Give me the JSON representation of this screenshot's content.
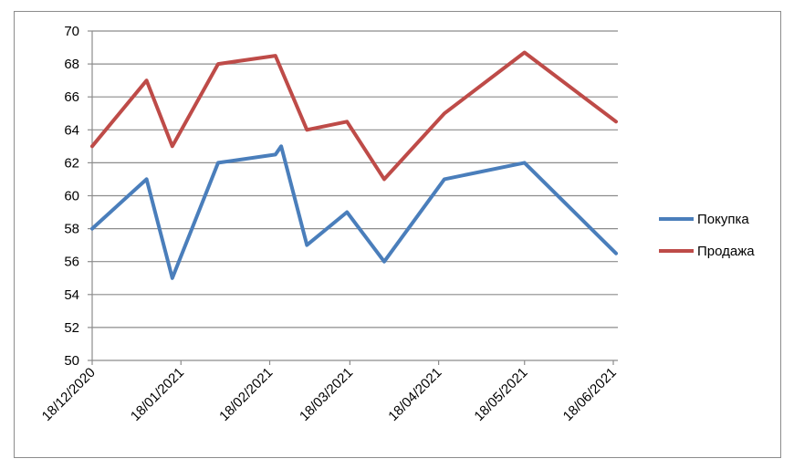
{
  "chart_data": {
    "type": "line",
    "title": "",
    "xlabel": "",
    "ylabel": "",
    "ylim": [
      50,
      70
    ],
    "y_ticks": [
      50,
      52,
      54,
      56,
      58,
      60,
      62,
      64,
      66,
      68,
      70
    ],
    "x_range": [
      "2020-12-18",
      "2021-06-18"
    ],
    "x_ticks": [
      {
        "date": "2020-12-18",
        "label": "18/12/2020"
      },
      {
        "date": "2021-01-18",
        "label": "18/01/2021"
      },
      {
        "date": "2021-02-18",
        "label": "18/02/2021"
      },
      {
        "date": "2021-03-18",
        "label": "18/03/2021"
      },
      {
        "date": "2021-04-18",
        "label": "18/04/2021"
      },
      {
        "date": "2021-05-18",
        "label": "18/05/2021"
      },
      {
        "date": "2021-06-18",
        "label": "18/06/2021"
      }
    ],
    "grid": "horizontal",
    "legend_position": "right",
    "series": [
      {
        "name": "Покупка",
        "color": "#4a7ebb",
        "points": [
          {
            "date": "2020-12-18",
            "value": 58
          },
          {
            "date": "2021-01-06",
            "value": 61
          },
          {
            "date": "2021-01-15",
            "value": 55
          },
          {
            "date": "2021-01-31",
            "value": 62
          },
          {
            "date": "2021-02-20",
            "value": 62.5
          },
          {
            "date": "2021-02-22",
            "value": 63
          },
          {
            "date": "2021-03-03",
            "value": 57
          },
          {
            "date": "2021-03-17",
            "value": 59
          },
          {
            "date": "2021-03-30",
            "value": 56
          },
          {
            "date": "2021-04-20",
            "value": 61
          },
          {
            "date": "2021-05-18",
            "value": 62
          },
          {
            "date": "2021-06-20",
            "value": 56.5
          }
        ]
      },
      {
        "name": "Продажа",
        "color": "#be4b48",
        "points": [
          {
            "date": "2020-12-18",
            "value": 63
          },
          {
            "date": "2021-01-06",
            "value": 67
          },
          {
            "date": "2021-01-15",
            "value": 63
          },
          {
            "date": "2021-01-31",
            "value": 68
          },
          {
            "date": "2021-02-20",
            "value": 68.5
          },
          {
            "date": "2021-03-03",
            "value": 64
          },
          {
            "date": "2021-03-17",
            "value": 64.5
          },
          {
            "date": "2021-03-30",
            "value": 61
          },
          {
            "date": "2021-04-20",
            "value": 65
          },
          {
            "date": "2021-05-18",
            "value": 68.7
          },
          {
            "date": "2021-06-20",
            "value": 64.5
          }
        ]
      }
    ]
  }
}
